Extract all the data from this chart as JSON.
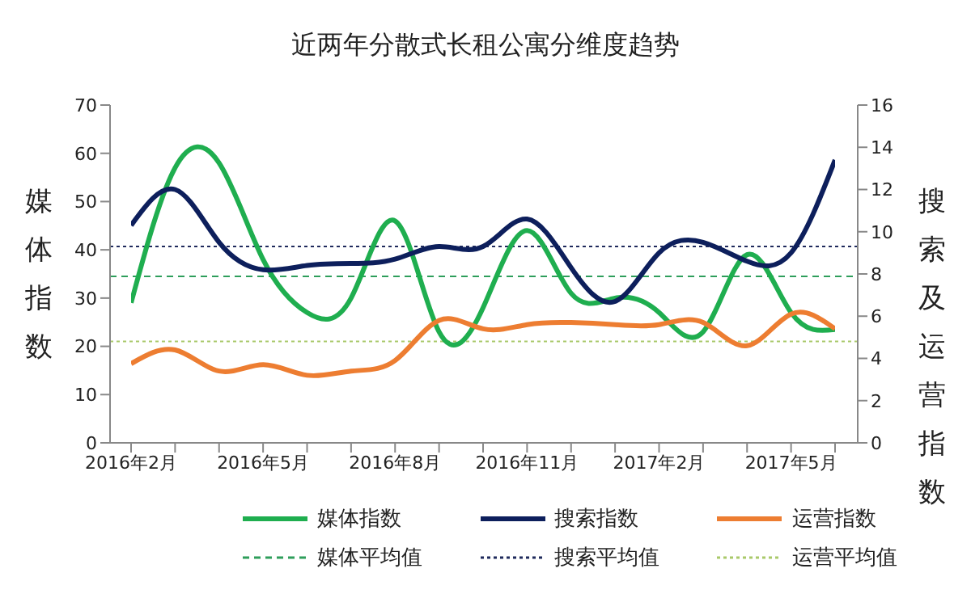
{
  "chart_data": {
    "type": "line",
    "title": "近两年分散式长租公寓分维度趋势",
    "ylabel": "媒体指数",
    "y2label": "搜索及运营指数",
    "categories": [
      "2016年2月",
      null,
      null,
      "2016年5月",
      null,
      null,
      "2016年8月",
      null,
      null,
      "2016年11月",
      null,
      null,
      "2017年2月",
      null,
      null,
      "2017年5月",
      null
    ],
    "series": [
      {
        "name": "媒体指数",
        "color": "#1fae4f",
        "values": [
          29,
          57,
          58,
          38,
          27,
          30,
          46,
          23,
          28,
          44,
          31,
          30,
          27,
          23,
          39,
          27,
          23.5
        ]
      },
      {
        "name": "搜索指数",
        "color": "#0d1f5c",
        "axis": "y2",
        "values": [
          10.3,
          12.0,
          9.5,
          8.2,
          8.4,
          8.5,
          8.7,
          9.3,
          9.3,
          10.6,
          8.3,
          6.7,
          9.0,
          9.5,
          8.6,
          9.0,
          13.4
        ]
      },
      {
        "name": "运营指数",
        "color": "#ed7d31",
        "axis": "y2",
        "values": [
          3.75,
          4.4,
          3.4,
          3.7,
          3.2,
          3.4,
          3.9,
          5.8,
          5.4,
          5.6,
          5.7,
          5.6,
          5.6,
          5.7,
          4.6,
          6.1,
          5.4
        ]
      }
    ],
    "ref_lines": [
      {
        "axis": "y",
        "value": 34.5,
        "label": "媒体平均值",
        "color": "#2e9e5b",
        "line_style": "dashed"
      },
      {
        "axis": "y2",
        "value": 9.3,
        "label": "搜索平均值",
        "color": "#1f2a5c",
        "line_style": "dotted"
      },
      {
        "axis": "y2",
        "value": 4.8,
        "label": "运营平均值",
        "color": "#a9c96a",
        "line_style": "dotted"
      }
    ],
    "ylim": [
      0,
      70
    ],
    "yticks": [
      0,
      10,
      20,
      30,
      40,
      50,
      60,
      70
    ],
    "y2lim": [
      0,
      16
    ],
    "y2ticks": [
      0,
      2,
      4,
      6,
      8,
      10,
      12,
      14,
      16
    ],
    "grid": false,
    "legend": "bottom",
    "marker": "none",
    "line_style": "solid"
  }
}
